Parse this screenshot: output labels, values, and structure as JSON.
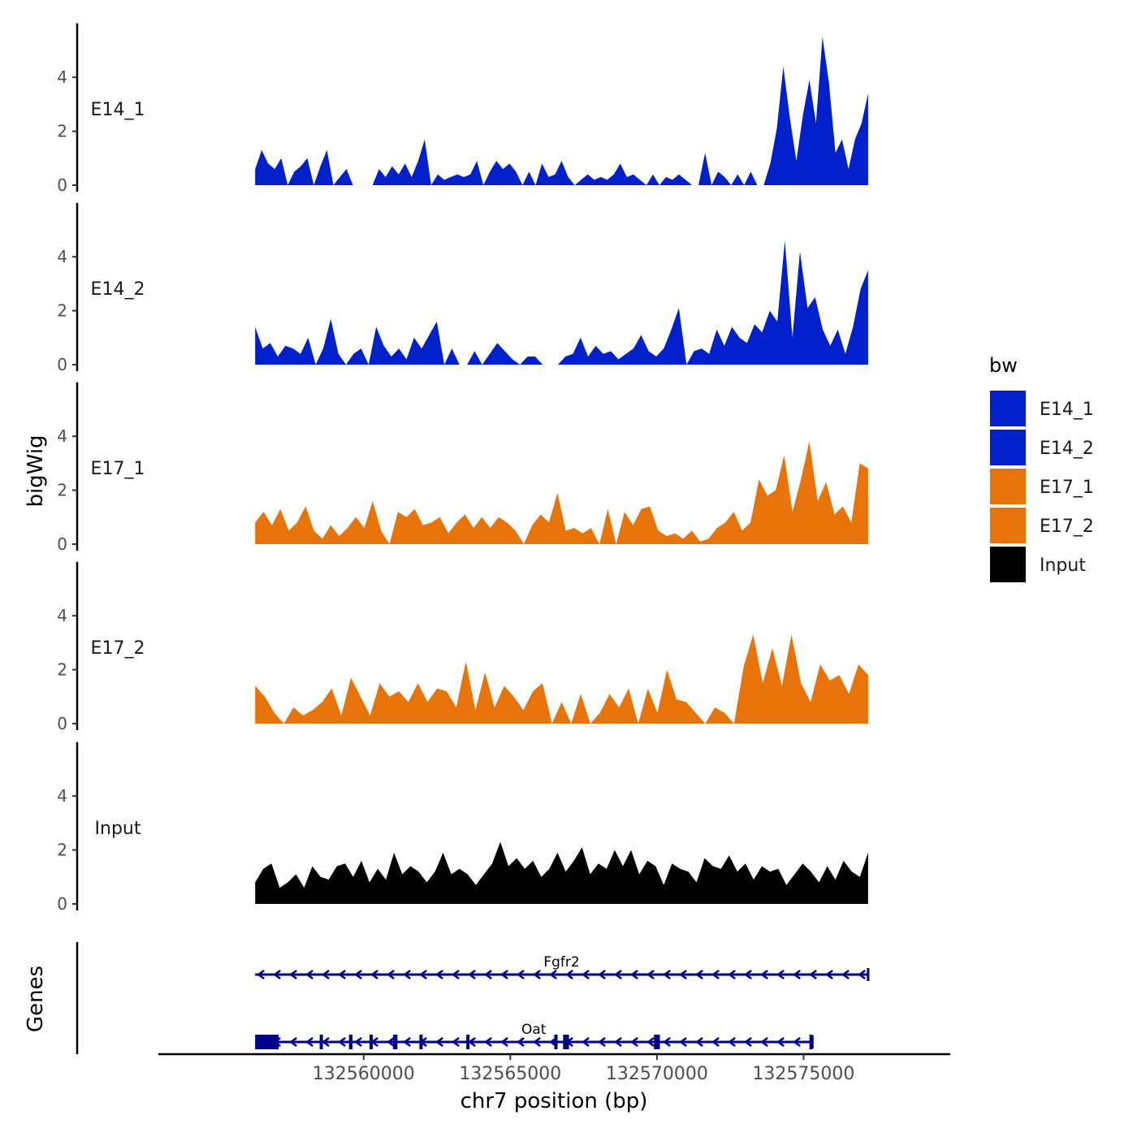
{
  "chart_data": {
    "type": "area",
    "ylabel": "bigWig",
    "genes_label": "Genes",
    "xlabel": "chr7 position (bp)",
    "x_ticks": [
      132560000,
      132565000,
      132570000,
      132575000
    ],
    "x_tick_labels": [
      "132560000",
      "132565000",
      "132570000",
      "132575000"
    ],
    "xlim": [
      132553000,
      132580000
    ],
    "data_x_range": [
      132556300,
      132577200
    ],
    "ylim": [
      0,
      6
    ],
    "y_ticks": [
      0,
      2,
      4
    ],
    "y_tick_labels": [
      "0",
      "2",
      "4"
    ],
    "legend": {
      "title": "bw",
      "entries": [
        {
          "label": "E14_1",
          "color": "#0020CC"
        },
        {
          "label": "E14_2",
          "color": "#0020CC"
        },
        {
          "label": "E17_1",
          "color": "#E87308"
        },
        {
          "label": "E17_2",
          "color": "#E87308"
        },
        {
          "label": "Input",
          "color": "#000000"
        }
      ]
    },
    "series": [
      {
        "name": "E14_1",
        "color": "#0020CC",
        "values": [
          0.6,
          1.3,
          0.8,
          0.6,
          1.0,
          0,
          0.5,
          0.7,
          1.0,
          0,
          0.7,
          1.3,
          0,
          0.3,
          0.6,
          0,
          0,
          0,
          0,
          0.6,
          0.3,
          0.7,
          0.4,
          0.8,
          0.3,
          0.9,
          1.7,
          0,
          0.4,
          0.2,
          0.3,
          0.4,
          0.3,
          0.4,
          0.9,
          0,
          0.5,
          0.9,
          0.6,
          0.8,
          0.5,
          0,
          0.5,
          0,
          0.8,
          0.3,
          0.4,
          0.9,
          0.3,
          0,
          0.2,
          0.4,
          0.2,
          0.3,
          0.2,
          0.4,
          0.8,
          0.3,
          0.4,
          0.2,
          0,
          0.4,
          0,
          0.3,
          0.2,
          0.4,
          0.2,
          0,
          0,
          1.2,
          0,
          0.5,
          0.3,
          0,
          0.4,
          0,
          0.5,
          0,
          0,
          0.8,
          2.1,
          4.4,
          2.5,
          0.9,
          2.6,
          3.9,
          2.3,
          5.5,
          3.8,
          1.2,
          1.7,
          0.6,
          1.7,
          2.3,
          3.4
        ]
      },
      {
        "name": "E14_2",
        "color": "#0020CC",
        "values": [
          1.4,
          0.6,
          0.8,
          0.3,
          0.7,
          0.6,
          0.4,
          1.0,
          0,
          0.6,
          1.7,
          0.4,
          0,
          0.4,
          0.6,
          0,
          1.4,
          0.7,
          0.3,
          0.6,
          0.2,
          1.0,
          0.6,
          1.1,
          1.6,
          0,
          0.6,
          0,
          0,
          0.5,
          0,
          0.4,
          0.8,
          0.5,
          0.2,
          0,
          0.3,
          0.3,
          0,
          0,
          0,
          0.3,
          0.4,
          1.0,
          0.3,
          0.7,
          0.4,
          0.5,
          0.2,
          0.4,
          0.6,
          1.1,
          0.5,
          0.3,
          0.6,
          1.3,
          2.1,
          0,
          0.5,
          0.6,
          0.4,
          1.3,
          0.7,
          1.4,
          1.0,
          0.8,
          1.5,
          1.2,
          2.0,
          1.6,
          4.6,
          1.0,
          4.2,
          2.1,
          2.5,
          1.3,
          0.7,
          1.3,
          0.4,
          1.4,
          2.8,
          3.5
        ]
      },
      {
        "name": "E17_1",
        "color": "#E87308",
        "values": [
          0.8,
          1.2,
          0.7,
          1.3,
          0.5,
          0.8,
          1.4,
          0.5,
          0.2,
          0.7,
          0.3,
          0.6,
          1.0,
          0.6,
          1.6,
          0.5,
          0,
          1.2,
          1.0,
          1.3,
          0.7,
          0.8,
          1.0,
          0.4,
          0.8,
          1.1,
          0.6,
          1.0,
          0.6,
          1.0,
          0.8,
          0.5,
          0,
          0.7,
          1.1,
          0.8,
          1.9,
          0.5,
          0.6,
          0.4,
          0.6,
          0,
          1.3,
          0,
          1.2,
          0.7,
          1.3,
          1.4,
          0.5,
          0.3,
          0.4,
          0.2,
          0.5,
          0.1,
          0.2,
          0.6,
          0.8,
          1.2,
          0.5,
          0.8,
          2.4,
          1.8,
          2.0,
          3.3,
          1.2,
          2.4,
          3.8,
          1.6,
          2.3,
          1.1,
          1.4,
          0.8,
          3.0,
          2.8
        ]
      },
      {
        "name": "E17_2",
        "color": "#E87308",
        "values": [
          1.4,
          1.0,
          0.4,
          0,
          0.6,
          0.3,
          0.5,
          0.8,
          1.3,
          0.3,
          1.7,
          1.0,
          0.3,
          1.5,
          1.0,
          1.2,
          0.8,
          1.5,
          0.8,
          1.3,
          1.2,
          0.6,
          2.3,
          0.5,
          1.9,
          0.6,
          1.4,
          1.0,
          0.5,
          1.2,
          1.5,
          0,
          0.8,
          0,
          1.1,
          0,
          0.4,
          1.1,
          0.6,
          1.3,
          0,
          1.3,
          0.4,
          2.0,
          0.9,
          0.8,
          0.4,
          0,
          0.6,
          0.4,
          0,
          2.1,
          3.3,
          1.5,
          2.8,
          1.4,
          3.3,
          1.5,
          0.8,
          2.2,
          1.6,
          1.8,
          1.1,
          2.2,
          1.8
        ]
      },
      {
        "name": "Input",
        "color": "#000000",
        "values": [
          0.8,
          1.3,
          1.5,
          0.6,
          0.8,
          1.1,
          0.6,
          1.4,
          1.0,
          0.9,
          1.4,
          1.5,
          1.0,
          1.6,
          0.8,
          1.3,
          0.9,
          1.9,
          1.1,
          1.4,
          1.2,
          0.8,
          1.2,
          1.9,
          1.1,
          1.3,
          1.1,
          0.7,
          1.1,
          1.5,
          2.3,
          1.4,
          1.7,
          1.3,
          1.6,
          1.0,
          1.3,
          1.9,
          1.2,
          1.6,
          2.1,
          1.1,
          1.5,
          1.3,
          2.0,
          1.4,
          2.0,
          1.1,
          1.6,
          1.4,
          0.7,
          1.5,
          1.3,
          1.2,
          0.8,
          1.7,
          1.4,
          1.3,
          1.8,
          1.2,
          1.5,
          0.9,
          1.4,
          1.2,
          1.3,
          0.7,
          1.1,
          1.5,
          1.2,
          0.8,
          1.4,
          0.9,
          1.6,
          1.2,
          1.0,
          1.9
        ]
      }
    ],
    "genes": [
      {
        "name": "Fgfr2",
        "strand": "-",
        "start": 132556300,
        "end": 132577200,
        "exons": []
      },
      {
        "name": "Oat",
        "strand": "-",
        "start": 132556300,
        "end": 132575300,
        "exons": [
          [
            132556300,
            132557100
          ],
          [
            132558500,
            132558600
          ],
          [
            132559500,
            132559620
          ],
          [
            132560200,
            132560300
          ],
          [
            132561000,
            132561150
          ],
          [
            132561900,
            132562000
          ],
          [
            132563500,
            132563600
          ],
          [
            132566500,
            132566600
          ],
          [
            132566800,
            132567000
          ],
          [
            132569900,
            132570100
          ],
          [
            132575200,
            132575300
          ]
        ]
      }
    ]
  }
}
